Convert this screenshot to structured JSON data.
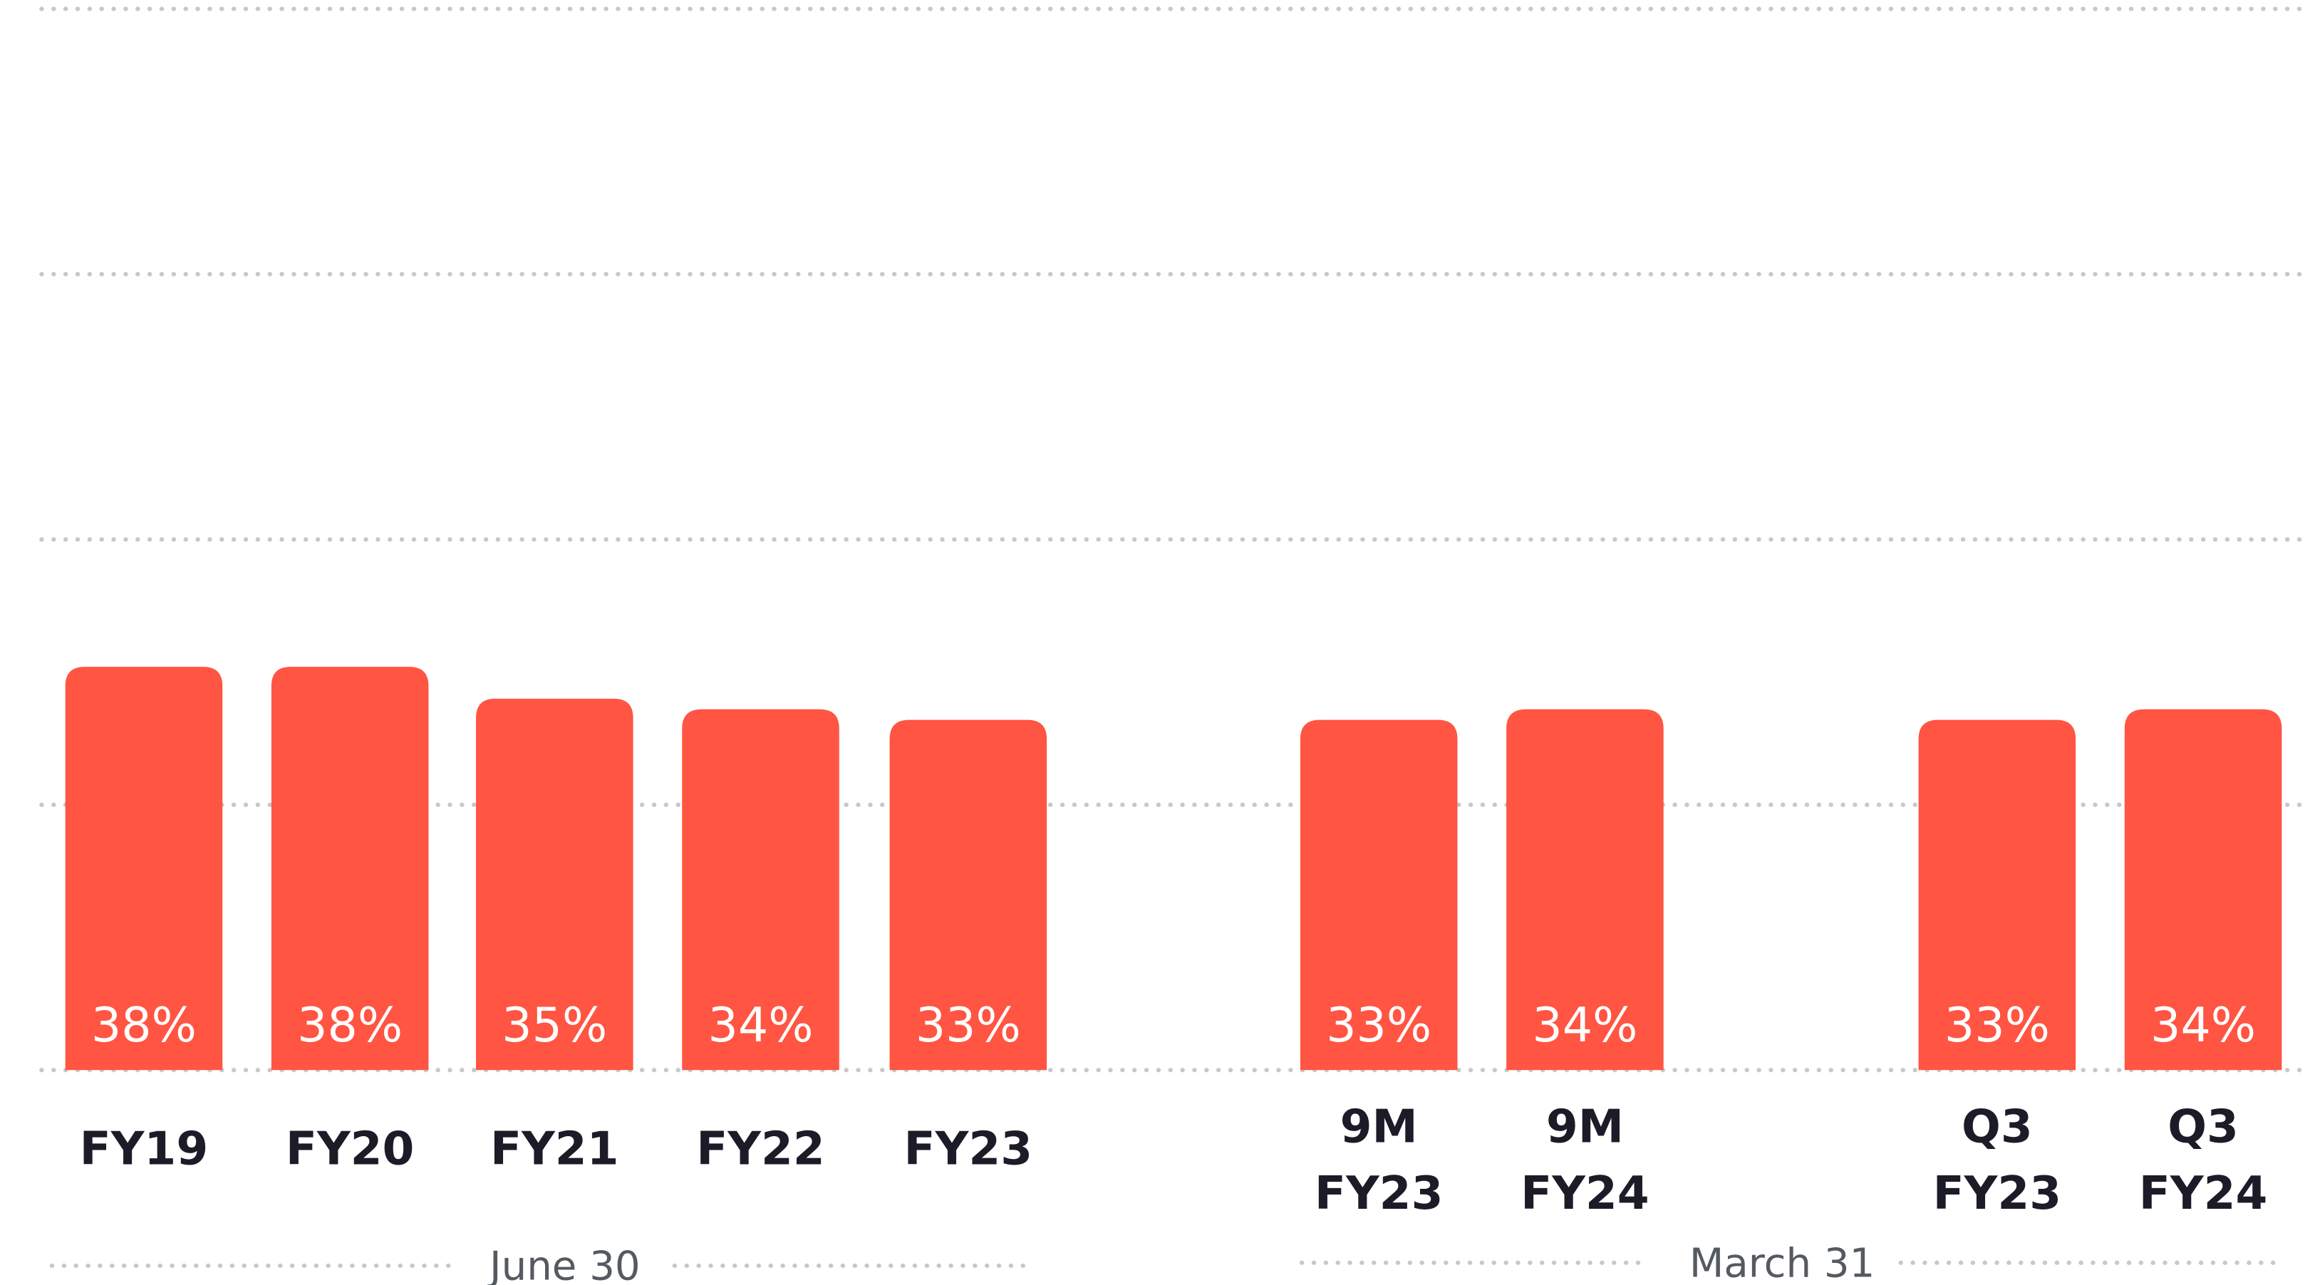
{
  "chart_data": {
    "type": "bar",
    "categories": [
      "FY19",
      "FY20",
      "FY21",
      "FY22",
      "FY23",
      "9M FY23",
      "9M FY24",
      "Q3 FY23",
      "Q3 FY24"
    ],
    "values": [
      38,
      38,
      35,
      34,
      33,
      33,
      34,
      33,
      34
    ],
    "value_labels": [
      "38%",
      "38%",
      "35%",
      "34%",
      "33%",
      "33%",
      "34%",
      "33%",
      "34%"
    ],
    "color": "#ff5542",
    "group_labels": [
      "June 30",
      "March 31"
    ],
    "ylim": [
      0,
      100
    ],
    "yticks": [
      0,
      25,
      50,
      75,
      100
    ],
    "grid": true
  }
}
